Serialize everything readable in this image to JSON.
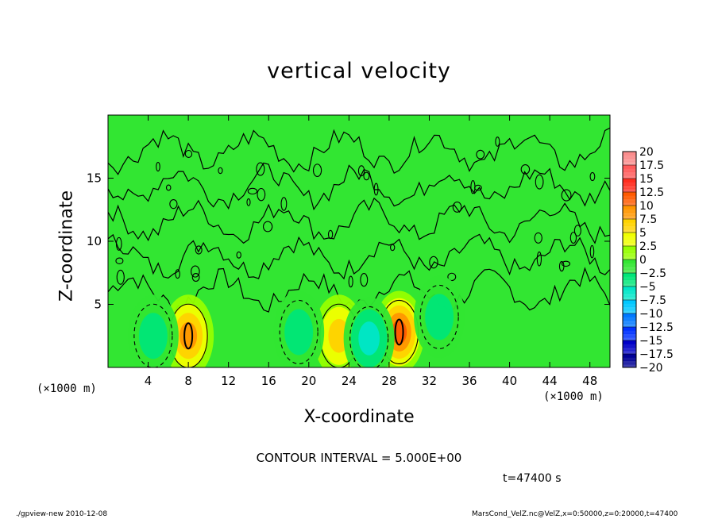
{
  "chart_data": {
    "type": "heatmap",
    "title": "vertical velocity",
    "xlabel": "X-coordinate",
    "ylabel": "Z-coordinate",
    "x_unit_label": "(×1000 m)",
    "xlim": [
      0,
      50
    ],
    "ylim": [
      0,
      20
    ],
    "x_ticks": [
      4,
      8,
      12,
      16,
      20,
      24,
      28,
      32,
      36,
      40,
      44,
      48
    ],
    "y_ticks": [
      5,
      10,
      15
    ],
    "colorbar": {
      "labels": [
        "20",
        "17.5",
        "15",
        "12.5",
        "10",
        "7.5",
        "5",
        "2.5",
        "0",
        "−2.5",
        "−5",
        "−7.5",
        "−10",
        "−12.5",
        "−15",
        "−17.5",
        "−20"
      ],
      "colors": [
        "#fa8c8c",
        "#ff5a5a",
        "#ff2d1e",
        "#ff5a00",
        "#ff9600",
        "#ffd200",
        "#f0ff00",
        "#96ff00",
        "#32e632",
        "#00e678",
        "#00e6c8",
        "#00c8ff",
        "#0078ff",
        "#0032ff",
        "#0000c8",
        "#000096",
        "#6400b4"
      ]
    },
    "features": [
      {
        "label": "updraft",
        "x": 8,
        "z": 2.5,
        "w": 10
      },
      {
        "label": "updraft",
        "x": 23,
        "z": 2.5,
        "w": 7
      },
      {
        "label": "updraft",
        "x": 29,
        "z": 2.8,
        "w": 11
      },
      {
        "label": "downdraft",
        "x": 26,
        "z": 2.3,
        "w": -6
      },
      {
        "label": "downdraft",
        "x": 4.5,
        "z": 2.5,
        "w": -4
      },
      {
        "label": "downdraft",
        "x": 19,
        "z": 2.8,
        "w": -4
      },
      {
        "label": "downdraft",
        "x": 33,
        "z": 4,
        "w": -4
      }
    ],
    "contour_interval": "CONTOUR INTERVAL = 5.000E+00",
    "time_label": "t=47400 s"
  },
  "footer": {
    "left": "./gpview-new  2010-12-08",
    "right": "MarsCond_VelZ.nc@VelZ,x=0:50000,z=0:20000,t=47400"
  },
  "colors": {
    "background": "#32e632",
    "frame": "#000000"
  }
}
